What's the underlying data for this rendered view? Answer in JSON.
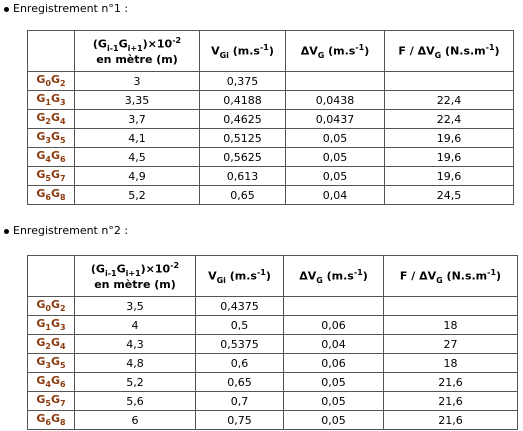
{
  "sections": [
    {
      "heading": "Enregistrement n°1 :",
      "header": [
        [
          "(G",
          "i-1",
          "G",
          "i+1",
          ")×10",
          "-2",
          "en mètre (m)"
        ],
        [
          "V",
          "Gi",
          " (m.s",
          "-1",
          ")"
        ],
        [
          "ΔV",
          "G",
          " (m.s",
          "-1",
          ")"
        ],
        [
          "F / ΔV",
          "G",
          " (N.s.m",
          "-1",
          ")"
        ]
      ],
      "rows": [
        {
          "label": [
            "G",
            "0",
            "G",
            "2"
          ],
          "cells": [
            "3",
            "0,375"
          ]
        },
        {
          "label": [
            "G",
            "1",
            "G",
            "3"
          ],
          "cells": [
            "3,35",
            "0,4188",
            "0,0438",
            "22,4"
          ]
        },
        {
          "label": [
            "G",
            "2",
            "G",
            "4"
          ],
          "cells": [
            "3,7",
            "0,4625",
            "0,0437",
            "22,4"
          ]
        },
        {
          "label": [
            "G",
            "3",
            "G",
            "5"
          ],
          "cells": [
            "4,1",
            "0,5125",
            "0,05",
            "19,6"
          ]
        },
        {
          "label": [
            "G",
            "4",
            "G",
            "6"
          ],
          "cells": [
            "4,5",
            "0,5625",
            "0,05",
            "19,6"
          ]
        },
        {
          "label": [
            "G",
            "5",
            "G",
            "7"
          ],
          "cells": [
            "4,9",
            "0,613",
            "0,05",
            "19,6"
          ]
        },
        {
          "label": [
            "G",
            "6",
            "G",
            "8"
          ],
          "cells": [
            "5,2",
            "0,65",
            "0,04",
            "24,5"
          ]
        }
      ]
    },
    {
      "heading": "Enregistrement n°2 :",
      "header": [
        [
          "(G",
          "i-1",
          "G",
          "i+1",
          ")×10",
          "-2",
          "en mètre (m)"
        ],
        [
          "V",
          "Gi",
          " (m.s",
          "-1",
          ")"
        ],
        [
          "ΔV",
          "G",
          " (m.s",
          "-1",
          ")"
        ],
        [
          "F / ΔV",
          "G",
          " (N.s.m",
          "-1",
          ")"
        ]
      ],
      "rows": [
        {
          "label": [
            "G",
            "0",
            "G",
            "2"
          ],
          "cells": [
            "3,5",
            "0,4375"
          ]
        },
        {
          "label": [
            "G",
            "1",
            "G",
            "3"
          ],
          "cells": [
            "4",
            "0,5",
            "0,06",
            "18"
          ]
        },
        {
          "label": [
            "G",
            "2",
            "G",
            "4"
          ],
          "cells": [
            "4,3",
            "0,5375",
            "0,04",
            "27"
          ]
        },
        {
          "label": [
            "G",
            "3",
            "G",
            "5"
          ],
          "cells": [
            "4,8",
            "0,6",
            "0,06",
            "18"
          ]
        },
        {
          "label": [
            "G",
            "4",
            "G",
            "6"
          ],
          "cells": [
            "5,2",
            "0,65",
            "0,05",
            "21,6"
          ]
        },
        {
          "label": [
            "G",
            "5",
            "G",
            "7"
          ],
          "cells": [
            "5,6",
            "0,7",
            "0,05",
            "21,6"
          ]
        },
        {
          "label": [
            "G",
            "6",
            "G",
            "8"
          ],
          "cells": [
            "6",
            "0,75",
            "0,05",
            "21,6"
          ]
        }
      ]
    }
  ]
}
